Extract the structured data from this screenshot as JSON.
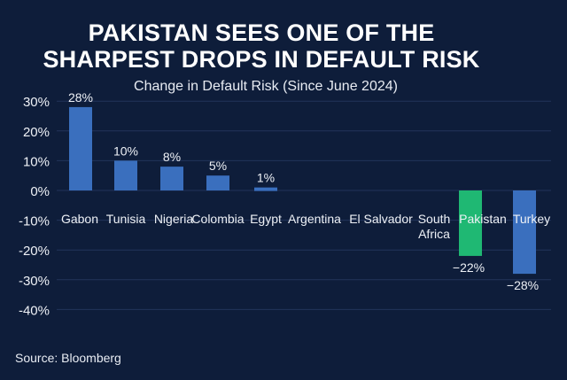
{
  "chart_data": {
    "type": "bar",
    "title_lines": [
      "PAKISTAN SEES ONE OF THE",
      "SHARPEST DROPS IN DEFAULT RISK"
    ],
    "subtitle": "Change in Default Risk (Since June 2024)",
    "source": "Source: Bloomberg",
    "xlabel": "",
    "ylabel": "",
    "ylim": [
      -40,
      30
    ],
    "yticks": [
      "30%",
      "20%",
      "10%",
      "0%",
      "-10%",
      "-20%",
      "-30%",
      "-40%"
    ],
    "ytick_values": [
      30,
      20,
      10,
      0,
      -10,
      -20,
      -30,
      -40
    ],
    "grid": true,
    "categories": [
      "Gabon",
      "Tunisia",
      "Nigeria",
      "Colombia",
      "Egypt",
      "Argentina",
      "El Salvador",
      "South Africa",
      "Pakistan",
      "Turkey"
    ],
    "values": [
      28,
      10,
      8,
      5,
      1,
      null,
      null,
      null,
      -22,
      -28
    ],
    "data_labels": [
      "28%",
      "10%",
      "8%",
      "5%",
      "1%",
      "",
      "",
      "",
      "−22%",
      "−28%"
    ],
    "colors": {
      "default": "#3a6fbe",
      "highlight": "#1fb873",
      "highlight_category": "Pakistan",
      "background": "#0e1d3a",
      "grid": "#22345a"
    }
  }
}
